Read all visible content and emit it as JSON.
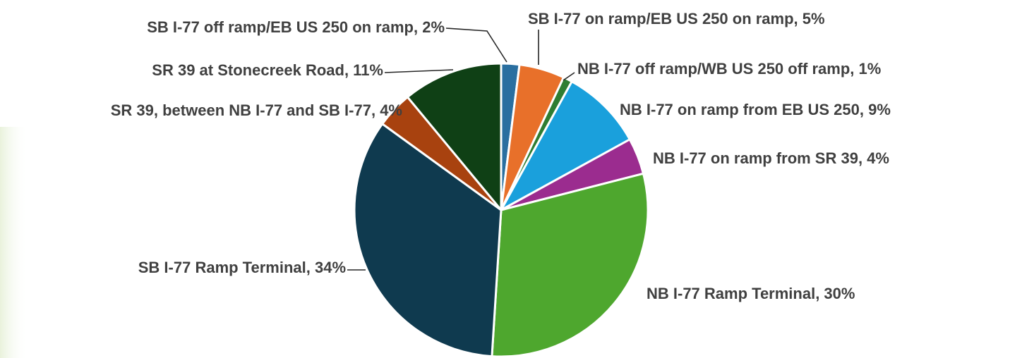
{
  "chart_data": {
    "type": "pie",
    "labels": [
      "SB I-77 off ramp/EB US 250 on ramp, 2%",
      "SB I-77 on ramp/EB US 250 on ramp, 5%",
      "NB I-77 off ramp/WB US 250 off ramp, 1%",
      "NB I-77 on ramp from EB US 250, 9%",
      "NB I-77 on ramp from SR 39, 4%",
      "NB I-77 Ramp Terminal, 30%",
      "SB I-77 Ramp Terminal, 34%",
      "SR 39, between NB I-77 and SB I-77, 4%",
      "SR 39 at Stonecreek Road, 11%"
    ],
    "values": [
      2,
      5,
      1,
      9,
      4,
      30,
      34,
      4,
      11
    ],
    "colors": [
      "#2a6fa0",
      "#e8702a",
      "#2e7d32",
      "#1aa0dc",
      "#9b2c8f",
      "#4ea72e",
      "#0f3a4f",
      "#a8420f",
      "#0f4015"
    ]
  }
}
